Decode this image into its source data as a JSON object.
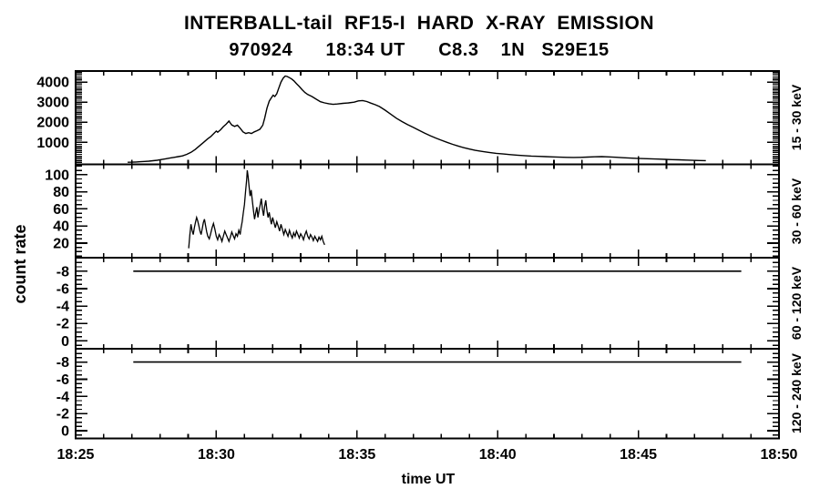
{
  "chart_data": {
    "type": "line",
    "title": "INTERBALL-tail  RF15-I  HARD  X-RAY  EMISSION",
    "subtitle": "970924      18:34 UT      C8.3    1N   S29E15",
    "xlabel": "time UT",
    "ylabel": "count rate",
    "line_color": "#000000",
    "background_color": "#ffffff",
    "x_axis": {
      "unit": "minutes after 18:25 UT",
      "min": 0,
      "max": 25,
      "major_tick_minutes": [
        0,
        5,
        10,
        15,
        20,
        25
      ],
      "major_tick_labels": [
        "18:25",
        "18:30",
        "18:35",
        "18:40",
        "18:45",
        "18:50"
      ],
      "minor_tick_step": 1,
      "grid": false
    },
    "legend": "none",
    "panels": [
      {
        "right_label": "15 - 30 keV",
        "ylim": [
          -100,
          4550
        ],
        "yticks": [
          1000,
          2000,
          3000,
          4000
        ],
        "ytick_labels": [
          "1000",
          "2000",
          "3000",
          "4000"
        ],
        "minor_step": 100,
        "line_width": 1.4,
        "points": [
          [
            1.85,
            5
          ],
          [
            2.0,
            10
          ],
          [
            2.15,
            20
          ],
          [
            2.3,
            30
          ],
          [
            2.45,
            45
          ],
          [
            2.6,
            60
          ],
          [
            2.75,
            80
          ],
          [
            2.9,
            105
          ],
          [
            3.05,
            140
          ],
          [
            3.2,
            175
          ],
          [
            3.35,
            215
          ],
          [
            3.5,
            250
          ],
          [
            3.65,
            285
          ],
          [
            3.8,
            320
          ],
          [
            3.95,
            400
          ],
          [
            4.1,
            500
          ],
          [
            4.25,
            640
          ],
          [
            4.4,
            820
          ],
          [
            4.55,
            1000
          ],
          [
            4.7,
            1180
          ],
          [
            4.8,
            1280
          ],
          [
            4.9,
            1420
          ],
          [
            5.0,
            1560
          ],
          [
            5.05,
            1500
          ],
          [
            5.15,
            1620
          ],
          [
            5.25,
            1780
          ],
          [
            5.35,
            1900
          ],
          [
            5.45,
            2060
          ],
          [
            5.5,
            1960
          ],
          [
            5.55,
            1860
          ],
          [
            5.65,
            1790
          ],
          [
            5.75,
            1850
          ],
          [
            5.85,
            1700
          ],
          [
            5.95,
            1520
          ],
          [
            6.05,
            1440
          ],
          [
            6.15,
            1480
          ],
          [
            6.25,
            1440
          ],
          [
            6.35,
            1520
          ],
          [
            6.45,
            1580
          ],
          [
            6.55,
            1650
          ],
          [
            6.65,
            1850
          ],
          [
            6.72,
            2200
          ],
          [
            6.8,
            2700
          ],
          [
            6.88,
            3050
          ],
          [
            6.95,
            3200
          ],
          [
            7.02,
            3350
          ],
          [
            7.08,
            3280
          ],
          [
            7.15,
            3420
          ],
          [
            7.22,
            3700
          ],
          [
            7.3,
            4000
          ],
          [
            7.38,
            4200
          ],
          [
            7.45,
            4300
          ],
          [
            7.52,
            4280
          ],
          [
            7.6,
            4220
          ],
          [
            7.68,
            4150
          ],
          [
            7.76,
            4060
          ],
          [
            7.85,
            3920
          ],
          [
            7.95,
            3780
          ],
          [
            8.05,
            3620
          ],
          [
            8.15,
            3480
          ],
          [
            8.25,
            3380
          ],
          [
            8.4,
            3280
          ],
          [
            8.55,
            3150
          ],
          [
            8.7,
            3020
          ],
          [
            8.85,
            2960
          ],
          [
            9.0,
            2920
          ],
          [
            9.15,
            2890
          ],
          [
            9.3,
            2910
          ],
          [
            9.5,
            2940
          ],
          [
            9.7,
            2960
          ],
          [
            9.9,
            3000
          ],
          [
            10.05,
            3060
          ],
          [
            10.2,
            3080
          ],
          [
            10.35,
            3030
          ],
          [
            10.5,
            2950
          ],
          [
            10.65,
            2870
          ],
          [
            10.8,
            2780
          ],
          [
            11.0,
            2600
          ],
          [
            11.2,
            2400
          ],
          [
            11.4,
            2200
          ],
          [
            11.6,
            2030
          ],
          [
            11.8,
            1880
          ],
          [
            12.0,
            1740
          ],
          [
            12.2,
            1600
          ],
          [
            12.4,
            1460
          ],
          [
            12.6,
            1330
          ],
          [
            12.8,
            1210
          ],
          [
            13.0,
            1100
          ],
          [
            13.2,
            1000
          ],
          [
            13.4,
            900
          ],
          [
            13.6,
            810
          ],
          [
            13.8,
            730
          ],
          [
            14.0,
            660
          ],
          [
            14.2,
            600
          ],
          [
            14.45,
            545
          ],
          [
            14.7,
            495
          ],
          [
            14.95,
            450
          ],
          [
            15.2,
            415
          ],
          [
            15.45,
            385
          ],
          [
            15.7,
            360
          ],
          [
            15.95,
            335
          ],
          [
            16.2,
            315
          ],
          [
            16.45,
            300
          ],
          [
            16.7,
            285
          ],
          [
            16.95,
            270
          ],
          [
            17.2,
            258
          ],
          [
            17.45,
            250
          ],
          [
            17.7,
            245
          ],
          [
            17.95,
            250
          ],
          [
            18.2,
            262
          ],
          [
            18.45,
            278
          ],
          [
            18.7,
            285
          ],
          [
            18.95,
            272
          ],
          [
            19.2,
            252
          ],
          [
            19.45,
            232
          ],
          [
            19.7,
            215
          ],
          [
            19.95,
            200
          ],
          [
            20.2,
            188
          ],
          [
            20.45,
            175
          ],
          [
            20.7,
            162
          ],
          [
            20.95,
            150
          ],
          [
            21.2,
            138
          ],
          [
            21.45,
            125
          ],
          [
            21.7,
            112
          ],
          [
            21.95,
            100
          ],
          [
            22.2,
            92
          ],
          [
            22.4,
            86
          ]
        ]
      },
      {
        "right_label": "30 - 60 keV",
        "ylim": [
          3,
          112
        ],
        "yticks": [
          20,
          40,
          60,
          80,
          100
        ],
        "ytick_labels": [
          "20",
          "40",
          "60",
          "80",
          "100"
        ],
        "minor_step": 5,
        "line_width": 1.3,
        "points": [
          [
            4.02,
            14
          ],
          [
            4.06,
            30
          ],
          [
            4.1,
            42
          ],
          [
            4.14,
            35
          ],
          [
            4.18,
            30
          ],
          [
            4.22,
            38
          ],
          [
            4.26,
            44
          ],
          [
            4.3,
            50
          ],
          [
            4.34,
            46
          ],
          [
            4.38,
            40
          ],
          [
            4.42,
            34
          ],
          [
            4.46,
            30
          ],
          [
            4.5,
            37
          ],
          [
            4.54,
            44
          ],
          [
            4.58,
            48
          ],
          [
            4.62,
            40
          ],
          [
            4.66,
            33
          ],
          [
            4.7,
            28
          ],
          [
            4.75,
            25
          ],
          [
            4.8,
            31
          ],
          [
            4.85,
            38
          ],
          [
            4.9,
            43
          ],
          [
            4.95,
            36
          ],
          [
            5.0,
            28
          ],
          [
            5.05,
            24
          ],
          [
            5.1,
            30
          ],
          [
            5.15,
            27
          ],
          [
            5.2,
            22
          ],
          [
            5.25,
            28
          ],
          [
            5.3,
            34
          ],
          [
            5.35,
            30
          ],
          [
            5.4,
            26
          ],
          [
            5.45,
            22
          ],
          [
            5.5,
            27
          ],
          [
            5.55,
            33
          ],
          [
            5.6,
            29
          ],
          [
            5.65,
            25
          ],
          [
            5.7,
            31
          ],
          [
            5.75,
            28
          ],
          [
            5.8,
            35
          ],
          [
            5.85,
            30
          ],
          [
            5.88,
            38
          ],
          [
            5.92,
            45
          ],
          [
            5.96,
            55
          ],
          [
            6.0,
            65
          ],
          [
            6.04,
            80
          ],
          [
            6.08,
            95
          ],
          [
            6.1,
            105
          ],
          [
            6.13,
            98
          ],
          [
            6.16,
            88
          ],
          [
            6.2,
            75
          ],
          [
            6.24,
            82
          ],
          [
            6.28,
            70
          ],
          [
            6.32,
            58
          ],
          [
            6.36,
            48
          ],
          [
            6.4,
            55
          ],
          [
            6.44,
            62
          ],
          [
            6.48,
            50
          ],
          [
            6.52,
            58
          ],
          [
            6.56,
            65
          ],
          [
            6.6,
            72
          ],
          [
            6.64,
            60
          ],
          [
            6.68,
            52
          ],
          [
            6.72,
            63
          ],
          [
            6.76,
            70
          ],
          [
            6.8,
            58
          ],
          [
            6.84,
            50
          ],
          [
            6.88,
            56
          ],
          [
            6.92,
            48
          ],
          [
            6.96,
            42
          ],
          [
            7.0,
            50
          ],
          [
            7.05,
            44
          ],
          [
            7.1,
            38
          ],
          [
            7.15,
            45
          ],
          [
            7.2,
            40
          ],
          [
            7.25,
            34
          ],
          [
            7.3,
            42
          ],
          [
            7.35,
            36
          ],
          [
            7.4,
            30
          ],
          [
            7.45,
            36
          ],
          [
            7.5,
            32
          ],
          [
            7.55,
            28
          ],
          [
            7.6,
            35
          ],
          [
            7.65,
            30
          ],
          [
            7.7,
            26
          ],
          [
            7.75,
            32
          ],
          [
            7.8,
            28
          ],
          [
            7.85,
            34
          ],
          [
            7.9,
            30
          ],
          [
            7.95,
            26
          ],
          [
            8.0,
            31
          ],
          [
            8.05,
            28
          ],
          [
            8.1,
            24
          ],
          [
            8.15,
            30
          ],
          [
            8.2,
            34
          ],
          [
            8.25,
            28
          ],
          [
            8.3,
            25
          ],
          [
            8.35,
            30
          ],
          [
            8.4,
            27
          ],
          [
            8.45,
            23
          ],
          [
            8.5,
            28
          ],
          [
            8.55,
            25
          ],
          [
            8.6,
            22
          ],
          [
            8.65,
            27
          ],
          [
            8.7,
            24
          ],
          [
            8.75,
            28
          ],
          [
            8.8,
            22
          ],
          [
            8.85,
            18
          ]
        ]
      },
      {
        "right_label": "60 - 120 keV",
        "ylim": [
          0.9,
          -9.55
        ],
        "yticks": [
          0,
          -2,
          -4,
          -6,
          -8
        ],
        "ytick_labels": [
          "0",
          "-2",
          "-4",
          "-6",
          "-8"
        ],
        "minor_step": 0.5,
        "line_width": 1.6,
        "points": [
          [
            2.05,
            -8
          ],
          [
            23.66,
            -8
          ]
        ]
      },
      {
        "right_label": "120 - 240 keV",
        "ylim": [
          0.9,
          -9.55
        ],
        "yticks": [
          0,
          -2,
          -4,
          -6,
          -8
        ],
        "ytick_labels": [
          "0",
          "-2",
          "-4",
          "-6",
          "-8"
        ],
        "minor_step": 0.5,
        "line_width": 1.6,
        "points": [
          [
            2.05,
            -8
          ],
          [
            23.66,
            -8
          ]
        ]
      }
    ]
  }
}
